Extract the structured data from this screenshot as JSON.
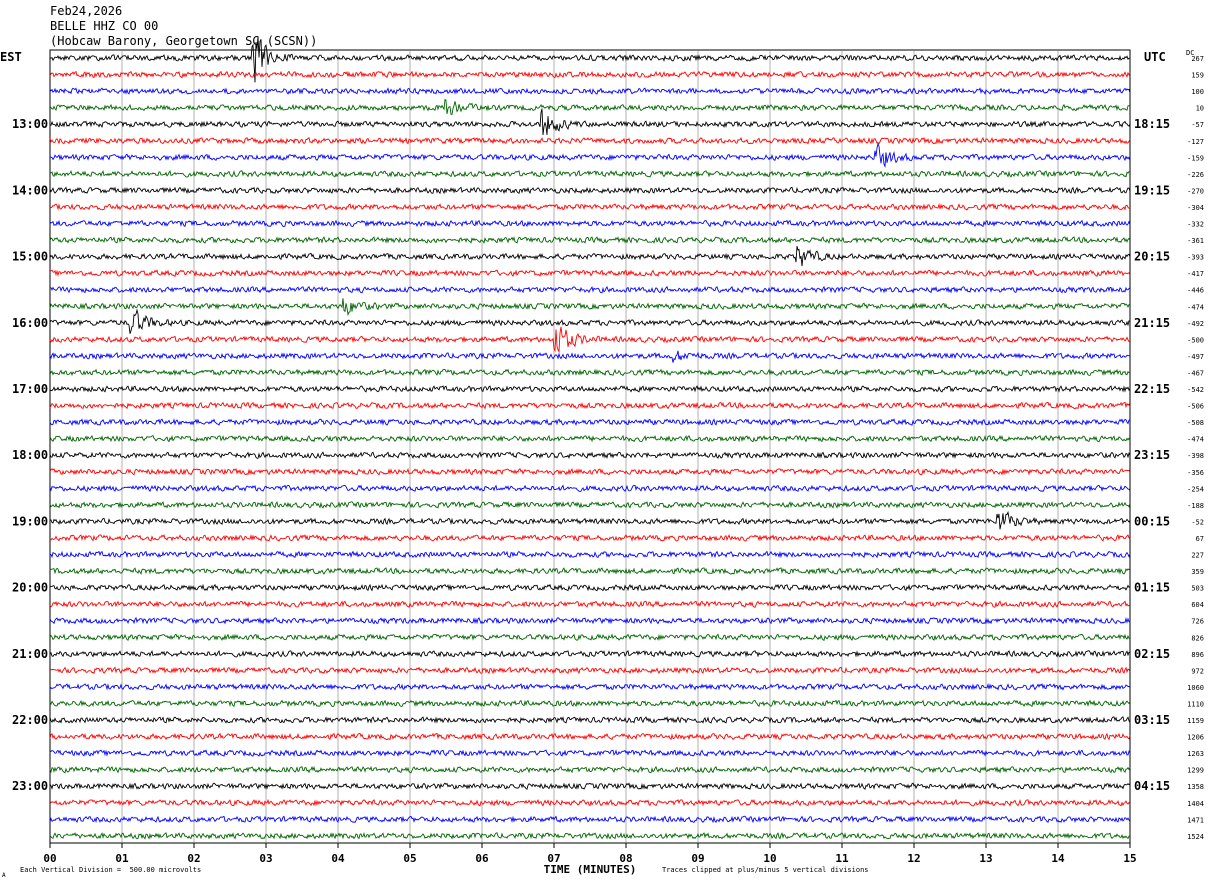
{
  "header": {
    "date": "Feb24,2026",
    "station": "BELLE HHZ CO 00",
    "location": "(Hobcaw Barony, Georgetown SC (SCSN))"
  },
  "timezones": {
    "left": "EST",
    "right": "UTC"
  },
  "dc_label": "DC",
  "footer": {
    "division_note": "Each Vertical Division =  500.00 microvolts",
    "clip_note": "Traces clipped at plus/minus 5 vertical divisions",
    "corner_mark": "A"
  },
  "colors": {
    "trace_cycle": [
      "#000000",
      "#ff0000",
      "#0000ff",
      "#006400"
    ],
    "grid": "#7f7f7f"
  },
  "chart_data": {
    "type": "line",
    "xlabel": "TIME (MINUTES)",
    "x_ticks": [
      "00",
      "01",
      "02",
      "03",
      "04",
      "05",
      "06",
      "07",
      "08",
      "09",
      "10",
      "11",
      "12",
      "13",
      "14",
      "15"
    ],
    "xlim": [
      0,
      15
    ],
    "left_hour_labels": [
      "13:00",
      "14:00",
      "15:00",
      "16:00",
      "17:00",
      "18:00",
      "19:00",
      "20:00",
      "21:00",
      "22:00",
      "23:00"
    ],
    "right_hour_labels": [
      "18:15",
      "19:15",
      "20:15",
      "21:15",
      "22:15",
      "23:15",
      "00:15",
      "01:15",
      "02:15",
      "03:15",
      "04:15"
    ],
    "dc_offsets": [
      "267",
      "159",
      "100",
      "10",
      "-57",
      "-127",
      "-159",
      "-226",
      "-270",
      "-304",
      "-332",
      "-361",
      "-393",
      "-417",
      "-446",
      "-474",
      "-492",
      "-500",
      "-497",
      "-467",
      "-542",
      "-506",
      "-508",
      "-474",
      "-398",
      "-356",
      "-254",
      "-188",
      "-52",
      "67",
      "227",
      "359",
      "503",
      "604",
      "726",
      "826",
      "896",
      "972",
      "1060",
      "1110",
      "1159",
      "1206",
      "1263",
      "1299",
      "1358",
      "1404",
      "1471",
      "1524"
    ],
    "events": [
      {
        "line": 0,
        "minute": 2.85,
        "amplitude": 9
      },
      {
        "line": 3,
        "minute": 5.5,
        "amplitude": 3
      },
      {
        "line": 4,
        "minute": 6.85,
        "amplitude": 5
      },
      {
        "line": 6,
        "minute": 11.5,
        "amplitude": 4
      },
      {
        "line": 12,
        "minute": 10.4,
        "amplitude": 4
      },
      {
        "line": 15,
        "minute": 4.1,
        "amplitude": 3
      },
      {
        "line": 16,
        "minute": 1.15,
        "amplitude": 5
      },
      {
        "line": 17,
        "minute": 7.05,
        "amplitude": 6
      },
      {
        "line": 18,
        "minute": 8.7,
        "amplitude": 1.5
      },
      {
        "line": 28,
        "minute": 13.2,
        "amplitude": 4
      }
    ]
  }
}
